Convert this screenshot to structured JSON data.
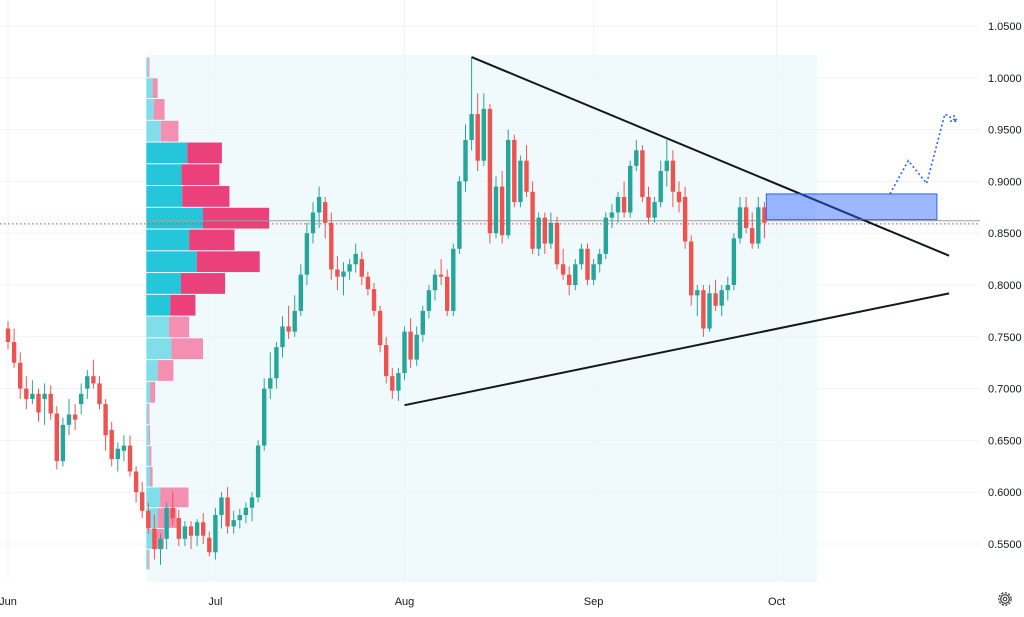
{
  "chart_data": {
    "type": "candlestick",
    "x_labels": [
      {
        "label": "Jun",
        "index": 0
      },
      {
        "label": "Jul",
        "index": 34
      },
      {
        "label": "Aug",
        "index": 65
      },
      {
        "label": "Sep",
        "index": 96
      },
      {
        "label": "Oct",
        "index": 126
      }
    ],
    "y_ticks": [
      0.55,
      0.6,
      0.65,
      0.7,
      0.75,
      0.8,
      0.85,
      0.9,
      0.95,
      1.0,
      1.05
    ],
    "y_range": [
      0.505,
      1.07
    ],
    "current_price": 0.859,
    "candles": [
      [
        0.758,
        0.765,
        0.738,
        0.745
      ],
      [
        0.745,
        0.758,
        0.72,
        0.725
      ],
      [
        0.725,
        0.735,
        0.69,
        0.7
      ],
      [
        0.7,
        0.712,
        0.68,
        0.69
      ],
      [
        0.69,
        0.708,
        0.685,
        0.695
      ],
      [
        0.695,
        0.7,
        0.668,
        0.677
      ],
      [
        0.69,
        0.705,
        0.665,
        0.695
      ],
      [
        0.695,
        0.703,
        0.67,
        0.676
      ],
      [
        0.676,
        0.683,
        0.622,
        0.63
      ],
      [
        0.63,
        0.672,
        0.625,
        0.665
      ],
      [
        0.665,
        0.69,
        0.655,
        0.675
      ],
      [
        0.675,
        0.685,
        0.66,
        0.67
      ],
      [
        0.685,
        0.705,
        0.675,
        0.695
      ],
      [
        0.7,
        0.718,
        0.69,
        0.712
      ],
      [
        0.712,
        0.728,
        0.7,
        0.705
      ],
      [
        0.705,
        0.712,
        0.68,
        0.685
      ],
      [
        0.685,
        0.69,
        0.64,
        0.655
      ],
      [
        0.66,
        0.668,
        0.625,
        0.632
      ],
      [
        0.632,
        0.648,
        0.62,
        0.642
      ],
      [
        0.64,
        0.655,
        0.63,
        0.645
      ],
      [
        0.645,
        0.655,
        0.615,
        0.62
      ],
      [
        0.62,
        0.625,
        0.59,
        0.6
      ],
      [
        0.6,
        0.61,
        0.575,
        0.582
      ],
      [
        0.582,
        0.59,
        0.56,
        0.565
      ],
      [
        0.565,
        0.578,
        0.535,
        0.545
      ],
      [
        0.545,
        0.56,
        0.53,
        0.555
      ],
      [
        0.555,
        0.59,
        0.545,
        0.585
      ],
      [
        0.585,
        0.6,
        0.568,
        0.575
      ],
      [
        0.575,
        0.583,
        0.548,
        0.555
      ],
      [
        0.555,
        0.572,
        0.548,
        0.567
      ],
      [
        0.567,
        0.572,
        0.545,
        0.558
      ],
      [
        0.558,
        0.574,
        0.548,
        0.571
      ],
      [
        0.571,
        0.58,
        0.55,
        0.558
      ],
      [
        0.556,
        0.562,
        0.538,
        0.542
      ],
      [
        0.542,
        0.585,
        0.535,
        0.578
      ],
      [
        0.578,
        0.6,
        0.565,
        0.595
      ],
      [
        0.595,
        0.605,
        0.56,
        0.567
      ],
      [
        0.567,
        0.582,
        0.56,
        0.573
      ],
      [
        0.573,
        0.584,
        0.565,
        0.578
      ],
      [
        0.578,
        0.59,
        0.57,
        0.585
      ],
      [
        0.585,
        0.6,
        0.572,
        0.595
      ],
      [
        0.595,
        0.65,
        0.59,
        0.645
      ],
      [
        0.645,
        0.71,
        0.64,
        0.7
      ],
      [
        0.7,
        0.735,
        0.69,
        0.71
      ],
      [
        0.71,
        0.745,
        0.7,
        0.74
      ],
      [
        0.74,
        0.77,
        0.73,
        0.76
      ],
      [
        0.76,
        0.78,
        0.748,
        0.755
      ],
      [
        0.755,
        0.79,
        0.75,
        0.775
      ],
      [
        0.775,
        0.82,
        0.77,
        0.81
      ],
      [
        0.81,
        0.86,
        0.8,
        0.85
      ],
      [
        0.85,
        0.88,
        0.84,
        0.87
      ],
      [
        0.87,
        0.895,
        0.855,
        0.885
      ],
      [
        0.88,
        0.885,
        0.845,
        0.86
      ],
      [
        0.86,
        0.87,
        0.805,
        0.815
      ],
      [
        0.815,
        0.828,
        0.795,
        0.808
      ],
      [
        0.808,
        0.822,
        0.79,
        0.813
      ],
      [
        0.813,
        0.825,
        0.805,
        0.82
      ],
      [
        0.82,
        0.84,
        0.812,
        0.83
      ],
      [
        0.825,
        0.832,
        0.8,
        0.808
      ],
      [
        0.808,
        0.813,
        0.79,
        0.796
      ],
      [
        0.796,
        0.802,
        0.77,
        0.775
      ],
      [
        0.775,
        0.78,
        0.735,
        0.742
      ],
      [
        0.742,
        0.75,
        0.705,
        0.712
      ],
      [
        0.712,
        0.72,
        0.69,
        0.698
      ],
      [
        0.698,
        0.72,
        0.688,
        0.715
      ],
      [
        0.715,
        0.76,
        0.708,
        0.755
      ],
      [
        0.755,
        0.768,
        0.72,
        0.728
      ],
      [
        0.728,
        0.76,
        0.722,
        0.752
      ],
      [
        0.752,
        0.78,
        0.745,
        0.775
      ],
      [
        0.775,
        0.8,
        0.768,
        0.795
      ],
      [
        0.795,
        0.815,
        0.785,
        0.81
      ],
      [
        0.81,
        0.825,
        0.8,
        0.808
      ],
      [
        0.808,
        0.815,
        0.77,
        0.775
      ],
      [
        0.775,
        0.84,
        0.77,
        0.835
      ],
      [
        0.835,
        0.905,
        0.83,
        0.9
      ],
      [
        0.9,
        0.955,
        0.89,
        0.94
      ],
      [
        0.94,
        1.02,
        0.93,
        0.965
      ],
      [
        0.965,
        0.985,
        0.91,
        0.92
      ],
      [
        0.92,
        0.985,
        0.915,
        0.97
      ],
      [
        0.97,
        0.975,
        0.84,
        0.85
      ],
      [
        0.85,
        0.905,
        0.845,
        0.895
      ],
      [
        0.895,
        0.91,
        0.84,
        0.848
      ],
      [
        0.848,
        0.95,
        0.845,
        0.94
      ],
      [
        0.94,
        0.945,
        0.875,
        0.88
      ],
      [
        0.88,
        0.925,
        0.875,
        0.92
      ],
      [
        0.92,
        0.935,
        0.885,
        0.89
      ],
      [
        0.89,
        0.9,
        0.83,
        0.835
      ],
      [
        0.835,
        0.87,
        0.828,
        0.865
      ],
      [
        0.865,
        0.87,
        0.83,
        0.84
      ],
      [
        0.84,
        0.87,
        0.835,
        0.86
      ],
      [
        0.86,
        0.866,
        0.815,
        0.82
      ],
      [
        0.82,
        0.835,
        0.805,
        0.81
      ],
      [
        0.81,
        0.818,
        0.79,
        0.8
      ],
      [
        0.8,
        0.825,
        0.795,
        0.82
      ],
      [
        0.82,
        0.84,
        0.815,
        0.835
      ],
      [
        0.835,
        0.84,
        0.8,
        0.805
      ],
      [
        0.805,
        0.825,
        0.8,
        0.82
      ],
      [
        0.82,
        0.835,
        0.812,
        0.83
      ],
      [
        0.83,
        0.87,
        0.825,
        0.865
      ],
      [
        0.865,
        0.878,
        0.855,
        0.87
      ],
      [
        0.87,
        0.89,
        0.86,
        0.885
      ],
      [
        0.885,
        0.9,
        0.865,
        0.87
      ],
      [
        0.87,
        0.92,
        0.865,
        0.915
      ],
      [
        0.915,
        0.94,
        0.91,
        0.93
      ],
      [
        0.93,
        0.935,
        0.88,
        0.885
      ],
      [
        0.885,
        0.895,
        0.86,
        0.865
      ],
      [
        0.865,
        0.885,
        0.86,
        0.88
      ],
      [
        0.88,
        0.92,
        0.875,
        0.91
      ],
      [
        0.91,
        0.94,
        0.895,
        0.92
      ],
      [
        0.92,
        0.93,
        0.875,
        0.89
      ],
      [
        0.89,
        0.9,
        0.87,
        0.88
      ],
      [
        0.885,
        0.895,
        0.835,
        0.842
      ],
      [
        0.842,
        0.848,
        0.78,
        0.79
      ],
      [
        0.79,
        0.8,
        0.77,
        0.795
      ],
      [
        0.795,
        0.8,
        0.75,
        0.758
      ],
      [
        0.758,
        0.8,
        0.755,
        0.792
      ],
      [
        0.792,
        0.805,
        0.775,
        0.78
      ],
      [
        0.78,
        0.8,
        0.77,
        0.795
      ],
      [
        0.795,
        0.808,
        0.785,
        0.8
      ],
      [
        0.8,
        0.85,
        0.795,
        0.845
      ],
      [
        0.845,
        0.885,
        0.84,
        0.875
      ],
      [
        0.875,
        0.885,
        0.85,
        0.855
      ],
      [
        0.855,
        0.87,
        0.835,
        0.84
      ],
      [
        0.84,
        0.885,
        0.835,
        0.875
      ],
      [
        0.875,
        0.88,
        0.845,
        0.86
      ]
    ],
    "volume_profile": [
      {
        "low": 0.525,
        "high": 0.545,
        "up": 0.003,
        "down": 0.002,
        "muted": true
      },
      {
        "low": 0.545,
        "high": 0.565,
        "up": 0.01,
        "down": 0.018,
        "muted": true
      },
      {
        "low": 0.565,
        "high": 0.585,
        "up": 0.018,
        "down": 0.03,
        "muted": true
      },
      {
        "low": 0.585,
        "high": 0.605,
        "up": 0.022,
        "down": 0.045,
        "muted": true
      },
      {
        "low": 0.605,
        "high": 0.625,
        "up": 0.006,
        "down": 0.004,
        "muted": true
      },
      {
        "low": 0.625,
        "high": 0.645,
        "up": 0.005,
        "down": 0.003,
        "muted": true
      },
      {
        "low": 0.645,
        "high": 0.665,
        "up": 0.004,
        "down": 0.002,
        "muted": true
      },
      {
        "low": 0.665,
        "high": 0.686,
        "up": 0.003,
        "down": 0.002,
        "muted": true
      },
      {
        "low": 0.686,
        "high": 0.707,
        "up": 0.006,
        "down": 0.008,
        "muted": true
      },
      {
        "low": 0.707,
        "high": 0.728,
        "up": 0.018,
        "down": 0.025,
        "muted": true
      },
      {
        "low": 0.728,
        "high": 0.749,
        "up": 0.04,
        "down": 0.05,
        "muted": true
      },
      {
        "low": 0.749,
        "high": 0.77,
        "up": 0.036,
        "down": 0.032,
        "muted": true
      },
      {
        "low": 0.77,
        "high": 0.791,
        "up": 0.038,
        "down": 0.04,
        "muted": false
      },
      {
        "low": 0.791,
        "high": 0.812,
        "up": 0.055,
        "down": 0.07,
        "muted": false
      },
      {
        "low": 0.812,
        "high": 0.833,
        "up": 0.08,
        "down": 0.1,
        "muted": false
      },
      {
        "low": 0.833,
        "high": 0.854,
        "up": 0.068,
        "down": 0.072,
        "muted": false
      },
      {
        "low": 0.854,
        "high": 0.875,
        "up": 0.09,
        "down": 0.105,
        "muted": false
      },
      {
        "low": 0.875,
        "high": 0.896,
        "up": 0.057,
        "down": 0.075,
        "muted": false
      },
      {
        "low": 0.896,
        "high": 0.917,
        "up": 0.056,
        "down": 0.06,
        "muted": false
      },
      {
        "low": 0.917,
        "high": 0.938,
        "up": 0.065,
        "down": 0.055,
        "muted": false
      },
      {
        "low": 0.938,
        "high": 0.959,
        "up": 0.023,
        "down": 0.028,
        "muted": true
      },
      {
        "low": 0.959,
        "high": 0.98,
        "up": 0.012,
        "down": 0.017,
        "muted": true
      },
      {
        "low": 0.98,
        "high": 1.0,
        "up": 0.01,
        "down": 0.008,
        "muted": true
      },
      {
        "low": 1.0,
        "high": 1.02,
        "up": 0.003,
        "down": 0.002,
        "muted": true
      }
    ],
    "trendlines": [
      {
        "name": "upper",
        "from": [
          76,
          1.02
        ],
        "to": [
          151,
          0.836
        ]
      },
      {
        "name": "lower",
        "from": [
          65,
          0.684
        ],
        "to": [
          151,
          0.789
        ]
      }
    ],
    "zone": {
      "start": 123,
      "end": 149,
      "low": 0.865,
      "high": 0.885
    },
    "forecast": [
      [
        140,
        0.888
      ],
      [
        143,
        0.92
      ],
      [
        146,
        0.898
      ],
      [
        149,
        0.965
      ],
      [
        151,
        0.958
      ]
    ],
    "profile_range": {
      "start": 23,
      "end": 132
    },
    "colors": {
      "up": "#26a69a",
      "down": "#ef5350",
      "vp_up": "#26c6da",
      "vp_down": "#ec407a",
      "vp_up_muted": "#80deea",
      "vp_down_muted": "#f48fb1",
      "zone": "#2962ff",
      "price_line": "#f23645"
    }
  },
  "settings_icon": "gear-icon"
}
